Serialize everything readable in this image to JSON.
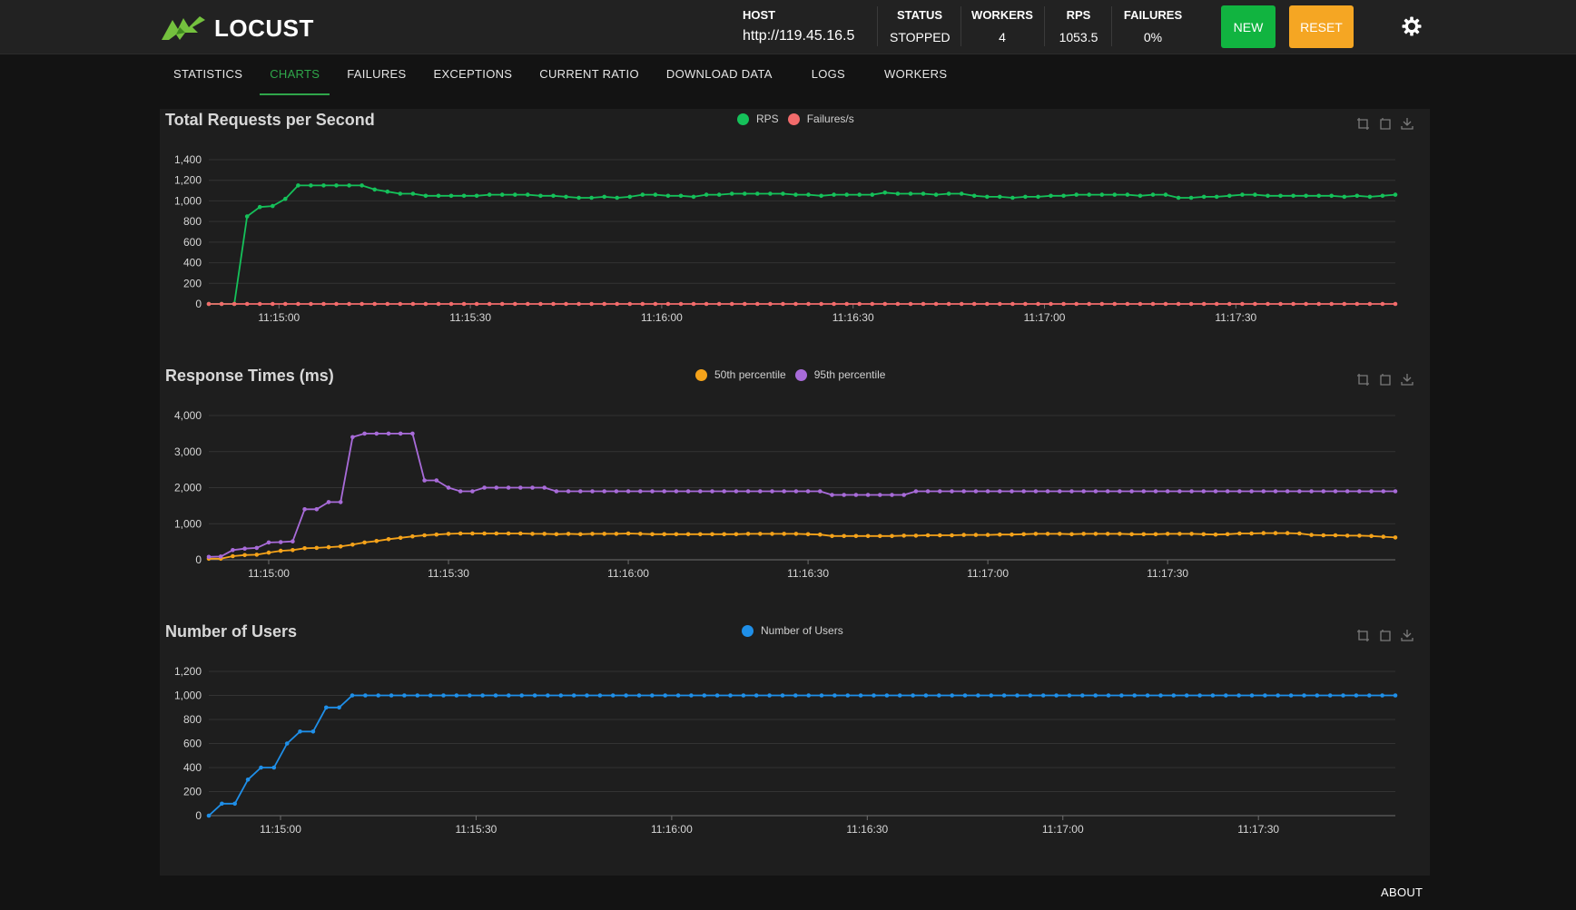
{
  "app": {
    "title": "LOCUST"
  },
  "header": {
    "host": {
      "label": "HOST",
      "value": "http://119.45.16.5"
    },
    "status": {
      "label": "STATUS",
      "value": "STOPPED"
    },
    "workers": {
      "label": "WORKERS",
      "value": "4"
    },
    "rps": {
      "label": "RPS",
      "value": "1053.5"
    },
    "failures": {
      "label": "FAILURES",
      "value": "0%"
    },
    "new_label": "NEW",
    "reset_label": "RESET",
    "new_color": "#11b440",
    "reset_color": "#f5a623"
  },
  "tabs": [
    {
      "label": "STATISTICS"
    },
    {
      "label": "CHARTS"
    },
    {
      "label": "FAILURES"
    },
    {
      "label": "EXCEPTIONS"
    },
    {
      "label": "CURRENT RATIO"
    },
    {
      "label": "DOWNLOAD DATA"
    },
    {
      "label": "LOGS"
    },
    {
      "label": "WORKERS"
    }
  ],
  "active_tab": 1,
  "footer": {
    "about_label": "ABOUT"
  },
  "chart_data": [
    {
      "type": "line",
      "title": "Total Requests per Second",
      "x_start": "11:14:49",
      "x_step_seconds": 2,
      "x_ticks": [
        "11:15:00",
        "11:15:30",
        "11:16:00",
        "11:16:30",
        "11:17:00",
        "11:17:30"
      ],
      "y_ticks": [
        0,
        200,
        400,
        600,
        800,
        1000,
        1200,
        1400
      ],
      "ylim": [
        0,
        1400
      ],
      "grid": true,
      "legend_position": "top-center",
      "series": [
        {
          "name": "RPS",
          "color": "#15c15a",
          "values": [
            0,
            0,
            0,
            850,
            940,
            950,
            1020,
            1150,
            1150,
            1150,
            1150,
            1150,
            1150,
            1110,
            1090,
            1070,
            1070,
            1050,
            1050,
            1050,
            1050,
            1050,
            1060,
            1060,
            1060,
            1060,
            1050,
            1050,
            1040,
            1030,
            1030,
            1040,
            1030,
            1040,
            1060,
            1060,
            1050,
            1050,
            1040,
            1060,
            1060,
            1070,
            1070,
            1070,
            1070,
            1070,
            1060,
            1060,
            1050,
            1060,
            1060,
            1060,
            1060,
            1080,
            1070,
            1070,
            1070,
            1060,
            1070,
            1070,
            1050,
            1040,
            1040,
            1030,
            1040,
            1040,
            1050,
            1050,
            1060,
            1060,
            1060,
            1060,
            1060,
            1050,
            1060,
            1060,
            1030,
            1030,
            1040,
            1040,
            1050,
            1060,
            1060,
            1050,
            1050,
            1050,
            1050,
            1050,
            1050,
            1040,
            1050,
            1040,
            1050,
            1060
          ]
        },
        {
          "name": "Failures/s",
          "color": "#f26b6b",
          "values": [
            0,
            0,
            0,
            0,
            0,
            0,
            0,
            0,
            0,
            0,
            0,
            0,
            0,
            0,
            0,
            0,
            0,
            0,
            0,
            0,
            0,
            0,
            0,
            0,
            0,
            0,
            0,
            0,
            0,
            0,
            0,
            0,
            0,
            0,
            0,
            0,
            0,
            0,
            0,
            0,
            0,
            0,
            0,
            0,
            0,
            0,
            0,
            0,
            0,
            0,
            0,
            0,
            0,
            0,
            0,
            0,
            0,
            0,
            0,
            0,
            0,
            0,
            0,
            0,
            0,
            0,
            0,
            0,
            0,
            0,
            0,
            0,
            0,
            0,
            0,
            0,
            0,
            0,
            0,
            0,
            0,
            0,
            0,
            0,
            0,
            0,
            0,
            0,
            0,
            0,
            0,
            0,
            0,
            0
          ]
        }
      ]
    },
    {
      "type": "line",
      "title": "Response Times (ms)",
      "x_start": "11:14:50",
      "x_step_seconds": 2,
      "x_ticks": [
        "11:15:00",
        "11:15:30",
        "11:16:00",
        "11:16:30",
        "11:17:00",
        "11:17:30"
      ],
      "y_ticks": [
        0,
        1000,
        2000,
        3000,
        4000
      ],
      "ylim": [
        0,
        4000
      ],
      "grid": true,
      "legend_position": "top-center",
      "series": [
        {
          "name": "50th percentile",
          "color": "#f5a31a",
          "values": [
            30,
            30,
            100,
            130,
            140,
            200,
            250,
            270,
            320,
            330,
            350,
            370,
            420,
            480,
            520,
            570,
            610,
            650,
            680,
            700,
            720,
            730,
            730,
            730,
            730,
            730,
            730,
            720,
            720,
            710,
            720,
            710,
            720,
            720,
            720,
            730,
            720,
            710,
            710,
            710,
            710,
            710,
            710,
            710,
            710,
            720,
            720,
            720,
            720,
            720,
            710,
            700,
            660,
            660,
            660,
            660,
            660,
            660,
            670,
            670,
            680,
            680,
            680,
            690,
            690,
            690,
            700,
            700,
            710,
            720,
            720,
            720,
            710,
            720,
            720,
            720,
            720,
            710,
            710,
            710,
            720,
            720,
            720,
            710,
            700,
            710,
            730,
            730,
            740,
            740,
            740,
            730,
            690,
            680,
            680,
            670,
            670,
            660,
            640,
            620
          ]
        },
        {
          "name": "95th percentile",
          "color": "#a86bd9",
          "values": [
            80,
            90,
            270,
            310,
            330,
            480,
            490,
            510,
            1400,
            1400,
            1600,
            1600,
            3400,
            3500,
            3500,
            3500,
            3500,
            3500,
            2200,
            2200,
            2000,
            1900,
            1900,
            2000,
            2000,
            2000,
            2000,
            2000,
            2000,
            1900,
            1900,
            1900,
            1900,
            1900,
            1900,
            1900,
            1900,
            1900,
            1900,
            1900,
            1900,
            1900,
            1900,
            1900,
            1900,
            1900,
            1900,
            1900,
            1900,
            1900,
            1900,
            1900,
            1800,
            1800,
            1800,
            1800,
            1800,
            1800,
            1800,
            1900,
            1900,
            1900,
            1900,
            1900,
            1900,
            1900,
            1900,
            1900,
            1900,
            1900,
            1900,
            1900,
            1900,
            1900,
            1900,
            1900,
            1900,
            1900,
            1900,
            1900,
            1900,
            1900,
            1900,
            1900,
            1900,
            1900,
            1900,
            1900,
            1900,
            1900,
            1900,
            1900,
            1900,
            1900,
            1900,
            1900,
            1900,
            1900,
            1900,
            1900
          ]
        }
      ]
    },
    {
      "type": "line",
      "title": "Number of Users",
      "x_start": "11:14:49",
      "x_step_seconds": 2,
      "x_ticks": [
        "11:15:00",
        "11:15:30",
        "11:16:00",
        "11:16:30",
        "11:17:00",
        "11:17:30"
      ],
      "y_ticks": [
        0,
        200,
        400,
        600,
        800,
        1000,
        1200
      ],
      "ylim": [
        0,
        1200
      ],
      "grid": true,
      "legend_position": "top-center",
      "series": [
        {
          "name": "Number of Users",
          "color": "#1f8fe8",
          "values": [
            0,
            100,
            100,
            300,
            400,
            400,
            600,
            700,
            700,
            900,
            900,
            1000,
            1000,
            1000,
            1000,
            1000,
            1000,
            1000,
            1000,
            1000,
            1000,
            1000,
            1000,
            1000,
            1000,
            1000,
            1000,
            1000,
            1000,
            1000,
            1000,
            1000,
            1000,
            1000,
            1000,
            1000,
            1000,
            1000,
            1000,
            1000,
            1000,
            1000,
            1000,
            1000,
            1000,
            1000,
            1000,
            1000,
            1000,
            1000,
            1000,
            1000,
            1000,
            1000,
            1000,
            1000,
            1000,
            1000,
            1000,
            1000,
            1000,
            1000,
            1000,
            1000,
            1000,
            1000,
            1000,
            1000,
            1000,
            1000,
            1000,
            1000,
            1000,
            1000,
            1000,
            1000,
            1000,
            1000,
            1000,
            1000,
            1000,
            1000,
            1000,
            1000,
            1000,
            1000,
            1000,
            1000,
            1000,
            1000,
            1000,
            1000
          ]
        }
      ]
    }
  ]
}
